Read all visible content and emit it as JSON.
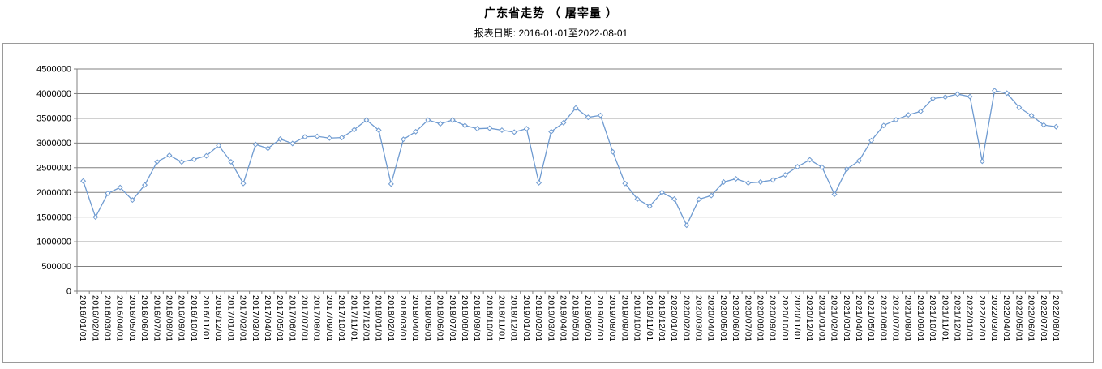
{
  "header": {
    "title": "广东省走势 （ 屠宰量 ）",
    "subtitle": "报表日期: 2016-01-01至2022-08-01"
  },
  "chart_data": {
    "type": "line",
    "title": "广东省走势 （ 屠宰量 ）",
    "subtitle": "报表日期: 2016-01-01至2022-08-01",
    "xlabel": "",
    "ylabel": "",
    "ylim": [
      0,
      4500000
    ],
    "ytick_interval": 500000,
    "yticks": [
      0,
      500000,
      1000000,
      1500000,
      2000000,
      2500000,
      3000000,
      3500000,
      4000000,
      4500000
    ],
    "grid": true,
    "legend": false,
    "marker": "diamond",
    "colors": {
      "line": "#6f9bd1",
      "marker_fill": "#ffffff",
      "grid": "#808080",
      "axis": "#808080",
      "border": "#9a9a9a",
      "text": "#000000",
      "background": "#ffffff"
    },
    "categories": [
      "2016/01/01",
      "2016/02/01",
      "2016/03/01",
      "2016/04/01",
      "2016/05/01",
      "2016/06/01",
      "2016/07/01",
      "2016/08/01",
      "2016/09/01",
      "2016/10/01",
      "2016/11/01",
      "2016/12/01",
      "2017/01/01",
      "2017/02/01",
      "2017/03/01",
      "2017/04/01",
      "2017/05/01",
      "2017/06/01",
      "2017/07/01",
      "2017/08/01",
      "2017/09/01",
      "2017/10/01",
      "2017/11/01",
      "2017/12/01",
      "2018/01/01",
      "2018/02/01",
      "2018/03/01",
      "2018/04/01",
      "2018/05/01",
      "2018/06/01",
      "2018/07/01",
      "2018/08/01",
      "2018/09/01",
      "2018/10/01",
      "2018/11/01",
      "2018/12/01",
      "2019/01/01",
      "2019/02/01",
      "2019/03/01",
      "2019/04/01",
      "2019/05/01",
      "2019/06/01",
      "2019/07/01",
      "2019/08/01",
      "2019/09/01",
      "2019/10/01",
      "2019/11/01",
      "2019/12/01",
      "2020/01/01",
      "2020/02/01",
      "2020/03/01",
      "2020/04/01",
      "2020/05/01",
      "2020/06/01",
      "2020/07/01",
      "2020/08/01",
      "2020/09/01",
      "2020/10/01",
      "2020/11/01",
      "2020/12/01",
      "2021/01/01",
      "2021/02/01",
      "2021/03/01",
      "2021/04/01",
      "2021/05/01",
      "2021/06/01",
      "2021/07/01",
      "2021/08/01",
      "2021/09/01",
      "2021/10/01",
      "2021/11/01",
      "2021/12/01",
      "2022/01/01",
      "2022/02/01",
      "2022/03/01",
      "2022/04/01",
      "2022/05/01",
      "2022/06/01",
      "2022/07/01",
      "2022/08/01"
    ],
    "series": [
      {
        "name": "屠宰量",
        "values": [
          2230000,
          1500000,
          1980000,
          2100000,
          1845000,
          2150000,
          2620000,
          2750000,
          2615000,
          2670000,
          2740000,
          2950000,
          2620000,
          2180000,
          2970000,
          2890000,
          3080000,
          2990000,
          3125000,
          3135000,
          3100000,
          3110000,
          3270000,
          3465000,
          3260000,
          2170000,
          3075000,
          3230000,
          3465000,
          3390000,
          3465000,
          3355000,
          3290000,
          3300000,
          3260000,
          3220000,
          3290000,
          2195000,
          3230000,
          3410000,
          3710000,
          3520000,
          3560000,
          2820000,
          2180000,
          1865000,
          1720000,
          2000000,
          1865000,
          1335000,
          1860000,
          1935000,
          2210000,
          2275000,
          2190000,
          2210000,
          2250000,
          2355000,
          2520000,
          2660000,
          2510000,
          1960000,
          2470000,
          2640000,
          3050000,
          3355000,
          3470000,
          3570000,
          3640000,
          3900000,
          3930000,
          3990000,
          3940000,
          2630000,
          4060000,
          4010000,
          3720000,
          3555000,
          3365000,
          3330000
        ]
      }
    ]
  }
}
